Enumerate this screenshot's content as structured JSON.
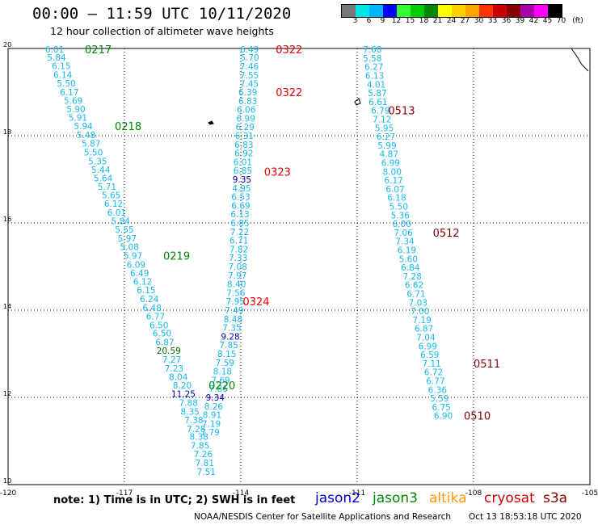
{
  "header": {
    "title": "00:00 – 11:59 UTC 10/11/2020",
    "subtitle": "12 hour collection of altimeter wave heights"
  },
  "legend": {
    "labels": [
      "3",
      "6",
      "9",
      "12",
      "15",
      "18",
      "21",
      "24",
      "27",
      "30",
      "33",
      "36",
      "39",
      "42",
      "45",
      "70"
    ],
    "unit": "(ft)",
    "colors": [
      "#777777",
      "#00e5e5",
      "#00b4ff",
      "#0000ff",
      "#33ff33",
      "#00cc00",
      "#008800",
      "#ffff00",
      "#ffd000",
      "#ffa500",
      "#ff3300",
      "#cc0000",
      "#880000",
      "#aa00aa",
      "#ff00ff",
      "#000000"
    ]
  },
  "map_axes": {
    "lon_labels": [
      "-120",
      "-117",
      "-114",
      "-111",
      "-108",
      "-105"
    ],
    "lat_labels": [
      "20",
      "18",
      "16",
      "14",
      "12",
      "10"
    ]
  },
  "tracks": [
    {
      "color": "#16b8ec",
      "points": [
        {
          "lat": 19.98,
          "lon": -118.8,
          "v": "6.01"
        },
        {
          "lat": 19.8,
          "lon": -118.75,
          "v": "5.84"
        },
        {
          "lat": 19.6,
          "lon": -118.63,
          "v": "6.15"
        },
        {
          "lat": 19.4,
          "lon": -118.59,
          "v": "6.14"
        },
        {
          "lat": 19.2,
          "lon": -118.5,
          "v": "5.50"
        },
        {
          "lat": 19.0,
          "lon": -118.42,
          "v": "6.17"
        },
        {
          "lat": 18.81,
          "lon": -118.32,
          "v": "5.69"
        },
        {
          "lat": 18.61,
          "lon": -118.25,
          "v": "5.90"
        },
        {
          "lat": 18.42,
          "lon": -118.2,
          "v": "5.91"
        },
        {
          "lat": 18.22,
          "lon": -118.06,
          "v": "5.94"
        },
        {
          "lat": 18.02,
          "lon": -117.99,
          "v": "5.48"
        },
        {
          "lat": 17.82,
          "lon": -117.86,
          "v": "5.87"
        },
        {
          "lat": 17.62,
          "lon": -117.8,
          "v": "5.50"
        },
        {
          "lat": 17.42,
          "lon": -117.69,
          "v": "5.35"
        },
        {
          "lat": 17.22,
          "lon": -117.61,
          "v": "5.44"
        },
        {
          "lat": 17.03,
          "lon": -117.55,
          "v": "5.64"
        },
        {
          "lat": 16.83,
          "lon": -117.45,
          "v": "5.71"
        },
        {
          "lat": 16.64,
          "lon": -117.34,
          "v": "5.65"
        },
        {
          "lat": 16.44,
          "lon": -117.28,
          "v": "6.12"
        },
        {
          "lat": 16.24,
          "lon": -117.2,
          "v": "6.01"
        },
        {
          "lat": 16.05,
          "lon": -117.1,
          "v": "5.84"
        },
        {
          "lat": 15.85,
          "lon": -117.0,
          "v": "5.55"
        },
        {
          "lat": 15.65,
          "lon": -116.93,
          "v": "5.97"
        },
        {
          "lat": 15.45,
          "lon": -116.87,
          "v": "5.08"
        },
        {
          "lat": 15.25,
          "lon": -116.78,
          "v": "5.97"
        },
        {
          "lat": 15.05,
          "lon": -116.7,
          "v": "6.09"
        },
        {
          "lat": 14.85,
          "lon": -116.61,
          "v": "6.49"
        },
        {
          "lat": 14.66,
          "lon": -116.53,
          "v": "6.12"
        },
        {
          "lat": 14.46,
          "lon": -116.44,
          "v": "6.15"
        },
        {
          "lat": 14.26,
          "lon": -116.36,
          "v": "6.24"
        },
        {
          "lat": 14.06,
          "lon": -116.29,
          "v": "6.48"
        },
        {
          "lat": 13.86,
          "lon": -116.2,
          "v": "6.77"
        },
        {
          "lat": 13.66,
          "lon": -116.11,
          "v": "6.50"
        },
        {
          "lat": 13.47,
          "lon": -116.03,
          "v": "6.50"
        },
        {
          "lat": 13.27,
          "lon": -115.96,
          "v": "6.87"
        },
        {
          "lat": 13.07,
          "lon": -115.86,
          "v": "20.59",
          "c": "#006600"
        },
        {
          "lat": 12.87,
          "lon": -115.78,
          "v": "7.27"
        },
        {
          "lat": 12.67,
          "lon": -115.72,
          "v": "7.23"
        },
        {
          "lat": 12.47,
          "lon": -115.61,
          "v": "8.04"
        },
        {
          "lat": 12.28,
          "lon": -115.51,
          "v": "8.20"
        },
        {
          "lat": 12.08,
          "lon": -115.48,
          "v": "11.25",
          "c": "#0000aa"
        },
        {
          "lat": 11.88,
          "lon": -115.35,
          "v": "7.88"
        },
        {
          "lat": 11.68,
          "lon": -115.31,
          "v": "8.35"
        },
        {
          "lat": 11.48,
          "lon": -115.21,
          "v": "7.38"
        },
        {
          "lat": 11.28,
          "lon": -115.15,
          "v": "7.28"
        },
        {
          "lat": 11.1,
          "lon": -115.08,
          "v": "8.38"
        },
        {
          "lat": 10.9,
          "lon": -115.05,
          "v": "7.85"
        },
        {
          "lat": 10.7,
          "lon": -114.97,
          "v": "7.26"
        },
        {
          "lat": 10.5,
          "lon": -114.93,
          "v": "7.81"
        },
        {
          "lat": 10.3,
          "lon": -114.89,
          "v": "7.51"
        }
      ]
    },
    {
      "color": "#16b8ec",
      "points": [
        {
          "lat": 19.98,
          "lon": -113.78,
          "v": "6.49"
        },
        {
          "lat": 19.8,
          "lon": -113.77,
          "v": "5.70"
        },
        {
          "lat": 19.59,
          "lon": -113.78,
          "v": "7.46"
        },
        {
          "lat": 19.39,
          "lon": -113.78,
          "v": "7.55"
        },
        {
          "lat": 19.19,
          "lon": -113.78,
          "v": "7.45"
        },
        {
          "lat": 19.0,
          "lon": -113.82,
          "v": "6.39"
        },
        {
          "lat": 18.8,
          "lon": -113.82,
          "v": "6.83"
        },
        {
          "lat": 18.6,
          "lon": -113.86,
          "v": "6.06"
        },
        {
          "lat": 18.4,
          "lon": -113.87,
          "v": "6.99"
        },
        {
          "lat": 18.2,
          "lon": -113.89,
          "v": "6.29"
        },
        {
          "lat": 18.0,
          "lon": -113.91,
          "v": "6.31"
        },
        {
          "lat": 17.8,
          "lon": -113.92,
          "v": "6.83"
        },
        {
          "lat": 17.6,
          "lon": -113.92,
          "v": "6.92"
        },
        {
          "lat": 17.4,
          "lon": -113.95,
          "v": "6.01"
        },
        {
          "lat": 17.2,
          "lon": -113.95,
          "v": "6.85"
        },
        {
          "lat": 17.0,
          "lon": -113.97,
          "v": "9.35",
          "c": "#0000aa"
        },
        {
          "lat": 16.8,
          "lon": -113.98,
          "v": "4.95"
        },
        {
          "lat": 16.6,
          "lon": -114.0,
          "v": "6.53"
        },
        {
          "lat": 16.4,
          "lon": -114.0,
          "v": "6.69"
        },
        {
          "lat": 16.2,
          "lon": -114.02,
          "v": "6.13"
        },
        {
          "lat": 16.0,
          "lon": -114.02,
          "v": "6.85"
        },
        {
          "lat": 15.8,
          "lon": -114.03,
          "v": "7.22"
        },
        {
          "lat": 15.6,
          "lon": -114.05,
          "v": "6.71"
        },
        {
          "lat": 15.4,
          "lon": -114.05,
          "v": "7.82"
        },
        {
          "lat": 15.2,
          "lon": -114.07,
          "v": "7.33"
        },
        {
          "lat": 15.0,
          "lon": -114.08,
          "v": "7.08"
        },
        {
          "lat": 14.8,
          "lon": -114.09,
          "v": "7.97"
        },
        {
          "lat": 14.6,
          "lon": -114.11,
          "v": "8.40"
        },
        {
          "lat": 14.4,
          "lon": -114.13,
          "v": "7.56"
        },
        {
          "lat": 14.2,
          "lon": -114.14,
          "v": "7.95"
        },
        {
          "lat": 14.0,
          "lon": -114.17,
          "v": "7.49"
        },
        {
          "lat": 13.8,
          "lon": -114.2,
          "v": "8.48"
        },
        {
          "lat": 13.6,
          "lon": -114.23,
          "v": "7.35"
        },
        {
          "lat": 13.4,
          "lon": -114.27,
          "v": "9.28",
          "c": "#0000aa"
        },
        {
          "lat": 13.2,
          "lon": -114.31,
          "v": "7.85"
        },
        {
          "lat": 13.0,
          "lon": -114.36,
          "v": "8.15"
        },
        {
          "lat": 12.8,
          "lon": -114.41,
          "v": "7.59"
        },
        {
          "lat": 12.6,
          "lon": -114.47,
          "v": "8.18"
        },
        {
          "lat": 12.4,
          "lon": -114.52,
          "v": "7.69"
        },
        {
          "lat": 12.2,
          "lon": -114.58,
          "v": "7.86"
        },
        {
          "lat": 12.0,
          "lon": -114.66,
          "v": "9.34",
          "c": "#0000aa"
        },
        {
          "lat": 11.8,
          "lon": -114.7,
          "v": "8.26"
        },
        {
          "lat": 11.6,
          "lon": -114.74,
          "v": "8.91"
        },
        {
          "lat": 11.4,
          "lon": -114.76,
          "v": "7.19"
        },
        {
          "lat": 11.2,
          "lon": -114.79,
          "v": "7.79"
        }
      ]
    },
    {
      "color": "#16b8ec",
      "points": [
        {
          "lat": 19.98,
          "lon": -110.61,
          "v": "7.68"
        },
        {
          "lat": 19.78,
          "lon": -110.61,
          "v": "5.58"
        },
        {
          "lat": 19.58,
          "lon": -110.57,
          "v": "6.27"
        },
        {
          "lat": 19.38,
          "lon": -110.55,
          "v": "6.13"
        },
        {
          "lat": 19.18,
          "lon": -110.51,
          "v": "4.01"
        },
        {
          "lat": 18.98,
          "lon": -110.48,
          "v": "5.87"
        },
        {
          "lat": 18.78,
          "lon": -110.46,
          "v": "6.61"
        },
        {
          "lat": 18.58,
          "lon": -110.4,
          "v": "6.79"
        },
        {
          "lat": 18.38,
          "lon": -110.36,
          "v": "7.12"
        },
        {
          "lat": 18.18,
          "lon": -110.3,
          "v": "5.95"
        },
        {
          "lat": 17.98,
          "lon": -110.26,
          "v": "6.27"
        },
        {
          "lat": 17.78,
          "lon": -110.23,
          "v": "5.99"
        },
        {
          "lat": 17.58,
          "lon": -110.18,
          "v": "4.87"
        },
        {
          "lat": 17.38,
          "lon": -110.14,
          "v": "6.99"
        },
        {
          "lat": 17.18,
          "lon": -110.1,
          "v": "8.00"
        },
        {
          "lat": 16.98,
          "lon": -110.06,
          "v": "6.17"
        },
        {
          "lat": 16.78,
          "lon": -110.02,
          "v": "6.07"
        },
        {
          "lat": 16.58,
          "lon": -109.98,
          "v": "6.18"
        },
        {
          "lat": 16.38,
          "lon": -109.93,
          "v": "5.50"
        },
        {
          "lat": 16.18,
          "lon": -109.89,
          "v": "5.36"
        },
        {
          "lat": 15.98,
          "lon": -109.85,
          "v": "6.00"
        },
        {
          "lat": 15.78,
          "lon": -109.81,
          "v": "7.06"
        },
        {
          "lat": 15.58,
          "lon": -109.77,
          "v": "7.34"
        },
        {
          "lat": 15.38,
          "lon": -109.72,
          "v": "6.19"
        },
        {
          "lat": 15.18,
          "lon": -109.68,
          "v": "5.60"
        },
        {
          "lat": 14.98,
          "lon": -109.63,
          "v": "6.84"
        },
        {
          "lat": 14.78,
          "lon": -109.58,
          "v": "7.28"
        },
        {
          "lat": 14.58,
          "lon": -109.53,
          "v": "6.62"
        },
        {
          "lat": 14.38,
          "lon": -109.48,
          "v": "6.71"
        },
        {
          "lat": 14.18,
          "lon": -109.43,
          "v": "7.03"
        },
        {
          "lat": 13.98,
          "lon": -109.38,
          "v": "7.00"
        },
        {
          "lat": 13.78,
          "lon": -109.33,
          "v": "7.19"
        },
        {
          "lat": 13.58,
          "lon": -109.28,
          "v": "6.87"
        },
        {
          "lat": 13.38,
          "lon": -109.23,
          "v": "7.04"
        },
        {
          "lat": 13.18,
          "lon": -109.18,
          "v": "6.99"
        },
        {
          "lat": 12.98,
          "lon": -109.13,
          "v": "6.59"
        },
        {
          "lat": 12.78,
          "lon": -109.08,
          "v": "7.11"
        },
        {
          "lat": 12.58,
          "lon": -109.03,
          "v": "6.72"
        },
        {
          "lat": 12.38,
          "lon": -108.98,
          "v": "6.77"
        },
        {
          "lat": 12.18,
          "lon": -108.93,
          "v": "6.36"
        },
        {
          "lat": 11.98,
          "lon": -108.88,
          "v": "5.59"
        },
        {
          "lat": 11.78,
          "lon": -108.83,
          "v": "6.75"
        },
        {
          "lat": 11.58,
          "lon": -108.78,
          "v": "6.90"
        }
      ]
    }
  ],
  "time_labels": [
    {
      "text": "0217",
      "lat": 19.98,
      "lon": -118.02,
      "color": "#008800"
    },
    {
      "text": "0218",
      "lat": 18.22,
      "lon": -117.25,
      "color": "#008800"
    },
    {
      "text": "0219",
      "lat": 15.25,
      "lon": -116.0,
      "color": "#008800"
    },
    {
      "text": "0220",
      "lat": 12.28,
      "lon": -114.83,
      "color": "#008800"
    },
    {
      "text": "0322",
      "lat": 19.98,
      "lon": -113.1,
      "color": "#ee0000"
    },
    {
      "text": "0322",
      "lat": 19.0,
      "lon": -113.1,
      "color": "#ee0000"
    },
    {
      "text": "0323",
      "lat": 17.18,
      "lon": -113.4,
      "color": "#ee0000"
    },
    {
      "text": "0324",
      "lat": 14.2,
      "lon": -113.95,
      "color": "#ee0000"
    },
    {
      "text": "0513",
      "lat": 18.58,
      "lon": -110.2,
      "color": "#880000"
    },
    {
      "text": "0512",
      "lat": 15.78,
      "lon": -109.05,
      "color": "#880000"
    },
    {
      "text": "0511",
      "lat": 12.78,
      "lon": -108.0,
      "color": "#880000"
    },
    {
      "text": "0510",
      "lat": 11.58,
      "lon": -108.25,
      "color": "#880000"
    }
  ],
  "note": "note: 1) Time is in UTC; 2) SWH is in feet",
  "missions": [
    {
      "name": "jason2",
      "color": "#0000cc"
    },
    {
      "name": "jason3",
      "color": "#008800"
    },
    {
      "name": "altika",
      "color": "#ff9900"
    },
    {
      "name": "cryosat",
      "color": "#cc0000"
    },
    {
      "name": "s3a",
      "color": "#880000"
    }
  ],
  "footer": {
    "credit": "NOAA/NESDIS Center for Satellite Applications and Research",
    "generated": "Oct 13 18:53:18 UTC 2020"
  }
}
